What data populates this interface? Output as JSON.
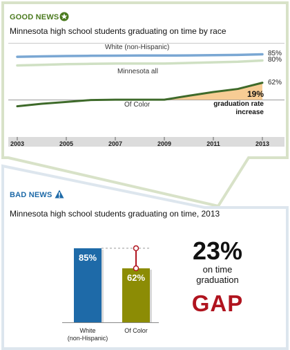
{
  "good_news": {
    "label": "GOOD NEWS",
    "icon": "star-circle-icon",
    "color": "#4a7a1e"
  },
  "bad_news": {
    "label": "BAD NEWS",
    "icon": "warning-triangle-icon",
    "color": "#1e6aa8"
  },
  "chart_data": [
    {
      "type": "line",
      "title": "Minnesota high school students graduating on time by race",
      "x": [
        2003,
        2004,
        2005,
        2006,
        2007,
        2008,
        2009,
        2010,
        2011,
        2012,
        2013
      ],
      "xticks": [
        "2003",
        "2005",
        "2007",
        "2009",
        "2011",
        "2013"
      ],
      "xlim": [
        2003,
        2013
      ],
      "ylim": [
        45,
        92
      ],
      "grid": false,
      "series": [
        {
          "name": "White (non-Hispanic)",
          "values": [
            83,
            83.3,
            83.6,
            83.8,
            83.9,
            84,
            84,
            84.1,
            84.3,
            84.5,
            85
          ],
          "color": "#7aa7d3",
          "end_label": "85%"
        },
        {
          "name": "Minnesota all",
          "values": [
            76,
            76.5,
            77,
            77.3,
            77.5,
            77.5,
            77.5,
            78,
            78.5,
            79,
            80
          ],
          "color": "#cfe0c3",
          "end_label": "80%"
        },
        {
          "name": "Of Color",
          "values": [
            43,
            45,
            46.5,
            48,
            48.3,
            48.3,
            48.3,
            51.5,
            54.5,
            57,
            62
          ],
          "color": "#3e6a2a",
          "end_label": "62%"
        }
      ],
      "annotation": {
        "value": "19%",
        "text": "graduation rate increase",
        "fill": "#f6c688"
      }
    },
    {
      "type": "bar",
      "title": "Minnesota high school students graduating on time, 2013",
      "categories": [
        "White\n(non-Hispanic)",
        "Of Color"
      ],
      "values": [
        85,
        62
      ],
      "value_labels": [
        "85%",
        "62%"
      ],
      "colors": [
        "#1e6aa8",
        "#8c8c05"
      ],
      "ylim": [
        0,
        100
      ]
    }
  ],
  "gap_callout": {
    "value": "23%",
    "line1": "on time",
    "line2": "graduation",
    "word": "GAP",
    "color": "#b0141f"
  }
}
